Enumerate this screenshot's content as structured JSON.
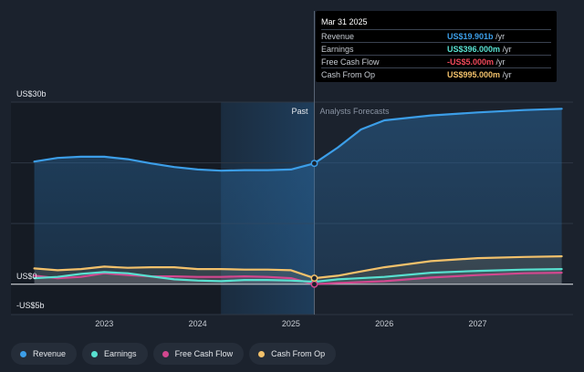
{
  "chart_data": {
    "type": "line",
    "y_unit_labels": {
      "top": "US$30b",
      "zero": "US$0",
      "bottom": "-US$5b"
    },
    "ylim": [
      -5,
      30
    ],
    "x_ticks": [
      "2023",
      "2024",
      "2025",
      "2026",
      "2027"
    ],
    "region_labels": {
      "past": "Past",
      "forecast": "Analysts Forecasts"
    },
    "divider_x": 2025.25,
    "highlight_start_x": 2024.25,
    "series": [
      {
        "name": "Revenue",
        "color": "#3c9ee8",
        "points": [
          [
            2022.25,
            20.2
          ],
          [
            2022.5,
            20.8
          ],
          [
            2022.75,
            21.0
          ],
          [
            2023.0,
            21.0
          ],
          [
            2023.25,
            20.6
          ],
          [
            2023.5,
            19.9
          ],
          [
            2023.75,
            19.3
          ],
          [
            2024.0,
            18.9
          ],
          [
            2024.25,
            18.7
          ],
          [
            2024.5,
            18.8
          ],
          [
            2024.75,
            18.8
          ],
          [
            2025.0,
            18.9
          ],
          [
            2025.25,
            19.901
          ],
          [
            2025.5,
            22.5
          ],
          [
            2025.75,
            25.5
          ],
          [
            2026.0,
            27.0
          ],
          [
            2026.5,
            27.8
          ],
          [
            2027.0,
            28.3
          ],
          [
            2027.5,
            28.7
          ],
          [
            2027.9,
            28.9
          ]
        ]
      },
      {
        "name": "Earnings",
        "color": "#58e0d0",
        "points": [
          [
            2022.25,
            1.0
          ],
          [
            2022.5,
            1.2
          ],
          [
            2022.75,
            1.7
          ],
          [
            2023.0,
            2.0
          ],
          [
            2023.25,
            1.8
          ],
          [
            2023.5,
            1.3
          ],
          [
            2023.75,
            0.8
          ],
          [
            2024.0,
            0.6
          ],
          [
            2024.25,
            0.5
          ],
          [
            2024.5,
            0.7
          ],
          [
            2024.75,
            0.7
          ],
          [
            2025.0,
            0.6
          ],
          [
            2025.25,
            0.396
          ],
          [
            2025.5,
            0.8
          ],
          [
            2026.0,
            1.2
          ],
          [
            2026.5,
            1.9
          ],
          [
            2027.0,
            2.2
          ],
          [
            2027.5,
            2.4
          ],
          [
            2027.9,
            2.5
          ]
        ]
      },
      {
        "name": "Free Cash Flow",
        "color": "#d2478f",
        "points": [
          [
            2022.25,
            1.4
          ],
          [
            2022.5,
            1.0
          ],
          [
            2022.75,
            1.2
          ],
          [
            2023.0,
            1.8
          ],
          [
            2023.25,
            1.5
          ],
          [
            2023.5,
            1.3
          ],
          [
            2023.75,
            1.3
          ],
          [
            2024.0,
            1.2
          ],
          [
            2024.25,
            1.2
          ],
          [
            2024.5,
            1.3
          ],
          [
            2024.75,
            1.2
          ],
          [
            2025.0,
            1.0
          ],
          [
            2025.25,
            -0.005
          ],
          [
            2025.5,
            0.2
          ],
          [
            2026.0,
            0.5
          ],
          [
            2026.5,
            1.1
          ],
          [
            2027.0,
            1.5
          ],
          [
            2027.5,
            1.8
          ],
          [
            2027.9,
            1.9
          ]
        ]
      },
      {
        "name": "Cash From Op",
        "color": "#f2c16b",
        "points": [
          [
            2022.25,
            2.6
          ],
          [
            2022.5,
            2.3
          ],
          [
            2022.75,
            2.5
          ],
          [
            2023.0,
            2.9
          ],
          [
            2023.25,
            2.7
          ],
          [
            2023.5,
            2.8
          ],
          [
            2023.75,
            2.8
          ],
          [
            2024.0,
            2.5
          ],
          [
            2024.25,
            2.5
          ],
          [
            2024.5,
            2.4
          ],
          [
            2024.75,
            2.4
          ],
          [
            2025.0,
            2.3
          ],
          [
            2025.25,
            0.995
          ],
          [
            2025.5,
            1.4
          ],
          [
            2026.0,
            2.8
          ],
          [
            2026.5,
            3.8
          ],
          [
            2027.0,
            4.3
          ],
          [
            2027.5,
            4.5
          ],
          [
            2027.9,
            4.6
          ]
        ]
      }
    ]
  },
  "tooltip": {
    "date": "Mar 31 2025",
    "rows": [
      {
        "label": "Revenue",
        "value": "US$19.901b",
        "unit": "/yr",
        "color": "#3c9ee8"
      },
      {
        "label": "Earnings",
        "value": "US$396.000m",
        "unit": "/yr",
        "color": "#58e0d0"
      },
      {
        "label": "Free Cash Flow",
        "value": "-US$5.000m",
        "unit": "/yr",
        "color": "#f0485a"
      },
      {
        "label": "Cash From Op",
        "value": "US$995.000m",
        "unit": "/yr",
        "color": "#f2c16b"
      }
    ]
  },
  "legend": [
    {
      "label": "Revenue",
      "color": "#3c9ee8"
    },
    {
      "label": "Earnings",
      "color": "#58e0d0"
    },
    {
      "label": "Free Cash Flow",
      "color": "#d2478f"
    },
    {
      "label": "Cash From Op",
      "color": "#f2c16b"
    }
  ]
}
